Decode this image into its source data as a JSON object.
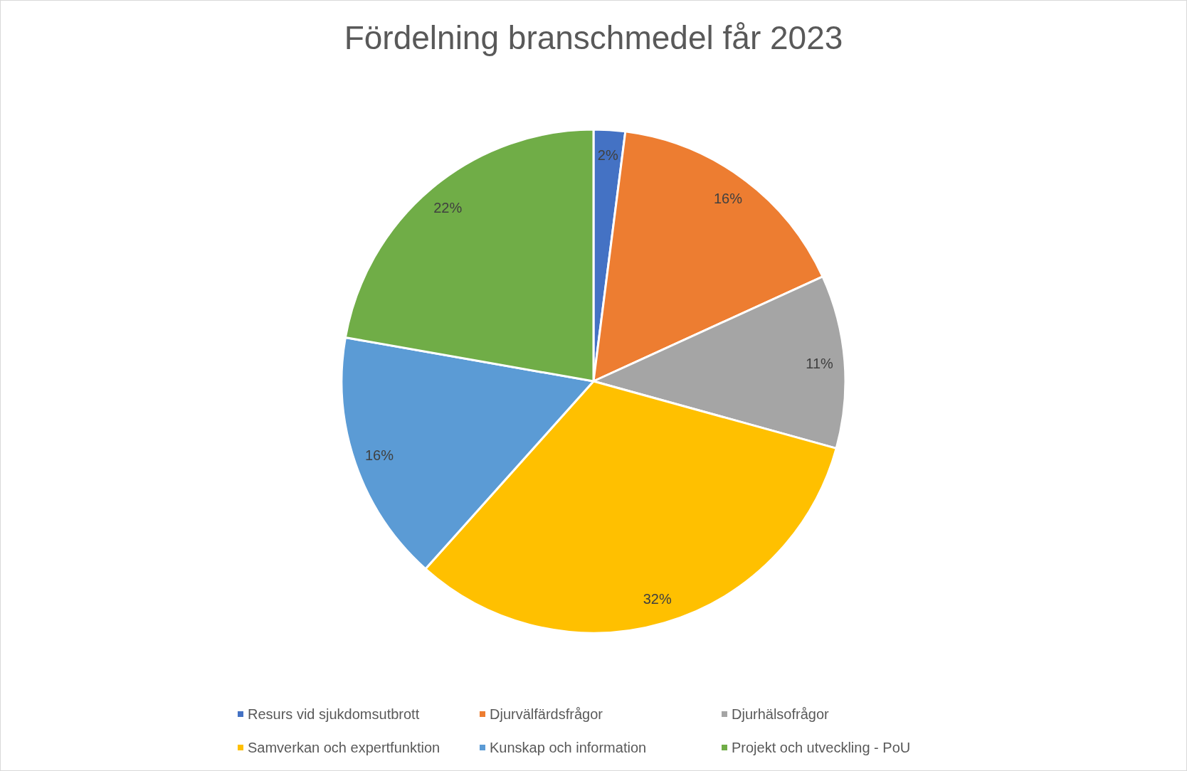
{
  "chart_data": {
    "type": "pie",
    "title": "Fördelning branschmedel får 2023",
    "categories": [
      "Resurs vid sjukdomsutbrott",
      "Djurvälfärdsfrågor",
      "Djurhälsofrågor",
      "Samverkan och expertfunktion",
      "Kunskap och information",
      "Projekt och utveckling - PoU"
    ],
    "values": [
      2,
      16,
      11,
      32,
      16,
      22
    ],
    "colors": [
      "#4472c4",
      "#ed7d31",
      "#a5a5a5",
      "#ffc000",
      "#5b9bd5",
      "#70ad47"
    ],
    "value_labels": [
      "2%",
      "16%",
      "11%",
      "32%",
      "16%",
      "22%"
    ],
    "legend": "bottom"
  }
}
